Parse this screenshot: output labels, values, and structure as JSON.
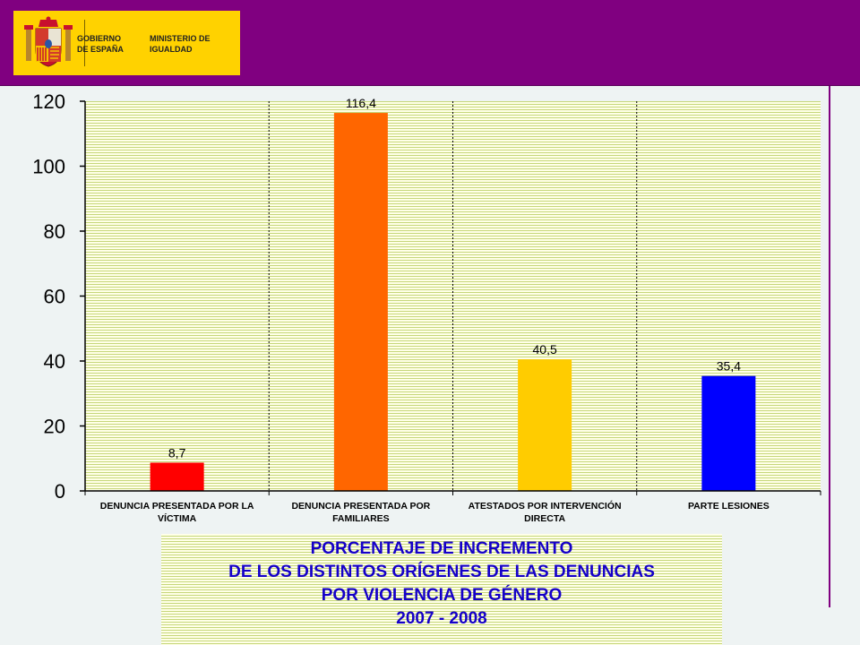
{
  "header": {
    "logo_gov_line1": "GOBIERNO",
    "logo_gov_line2": "DE ESPAÑA",
    "logo_min_line1": "MINISTERIO DE",
    "logo_min_line2": "IGUALDAD",
    "band_color": "#800080",
    "logo_color": "#ffd200"
  },
  "chart_data": {
    "type": "bar",
    "categories": [
      [
        "DENUNCIA PRESENTADA POR LA",
        "VÍCTIMA"
      ],
      [
        "DENUNCIA PRESENTADA POR",
        "FAMILIARES"
      ],
      [
        "ATESTADOS POR INTERVENCIÓN",
        "DIRECTA"
      ],
      [
        "PARTE LESIONES"
      ]
    ],
    "values": [
      8.7,
      116.4,
      40.5,
      35.4
    ],
    "value_labels": [
      "8,7",
      "116,4",
      "40,5",
      "35,4"
    ],
    "bar_colors": [
      "#ff0000",
      "#ff6600",
      "#ffcc00",
      "#0000ff"
    ],
    "ylim": [
      0,
      120
    ],
    "yticks": [
      "0",
      "20",
      "40",
      "60",
      "80",
      "100",
      "120"
    ],
    "grid": true,
    "legend": "none"
  },
  "caption": {
    "lines": [
      "PORCENTAJE DE INCREMENTO",
      "DE LOS DISTINTOS ORÍGENES DE LAS DENUNCIAS",
      "POR VIOLENCIA DE GÉNERO",
      "2007 - 2008"
    ],
    "color": "#1500c8"
  }
}
